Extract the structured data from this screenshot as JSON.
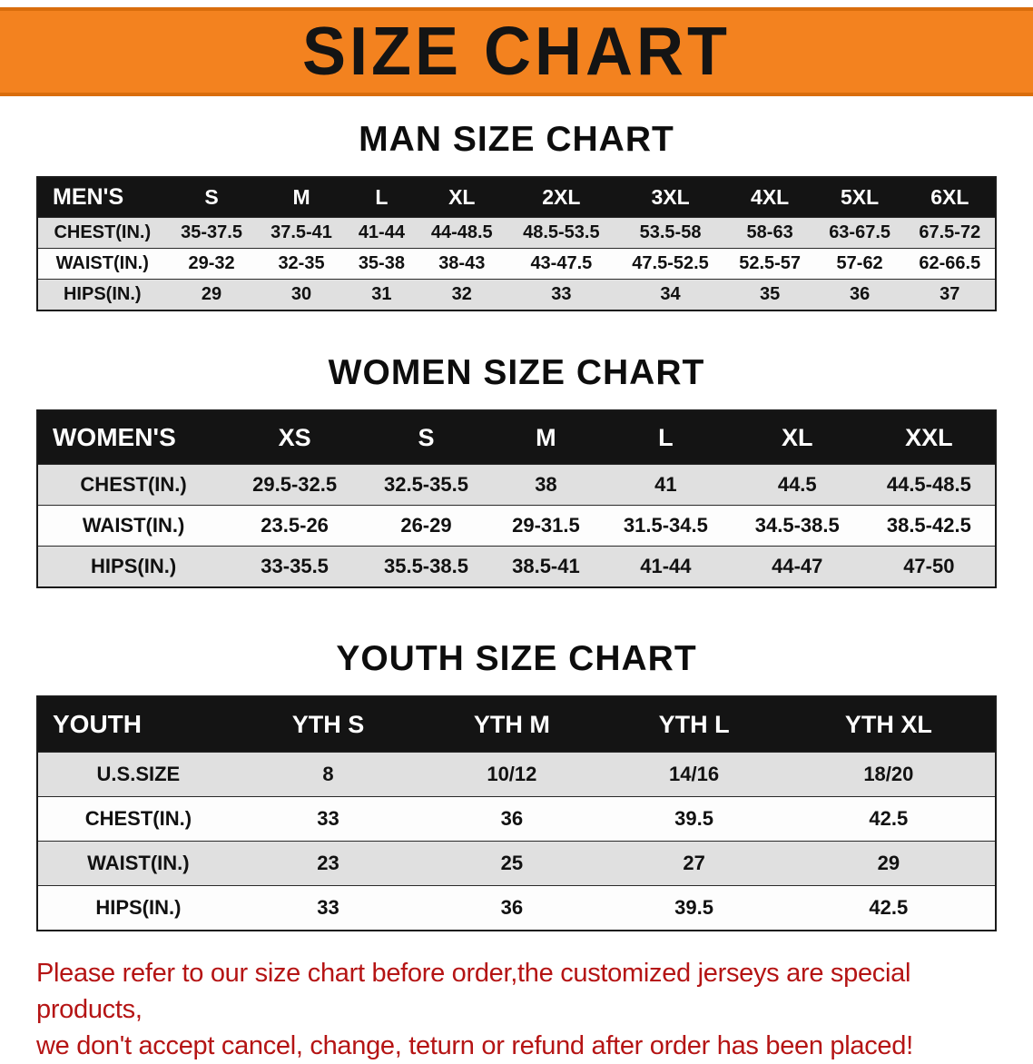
{
  "banner": {
    "title": "SIZE CHART",
    "bg_color": "#f3821f",
    "text_color": "#141414"
  },
  "sections": [
    {
      "heading": "MAN SIZE CHART",
      "table": {
        "header": [
          "MEN'S",
          "S",
          "M",
          "L",
          "XL",
          "2XL",
          "3XL",
          "4XL",
          "5XL",
          "6XL"
        ],
        "rows": [
          [
            "CHEST(IN.)",
            "35-37.5",
            "37.5-41",
            "41-44",
            "44-48.5",
            "48.5-53.5",
            "53.5-58",
            "58-63",
            "63-67.5",
            "67.5-72"
          ],
          [
            "WAIST(IN.)",
            "29-32",
            "32-35",
            "35-38",
            "38-43",
            "43-47.5",
            "47.5-52.5",
            "52.5-57",
            "57-62",
            "62-66.5"
          ],
          [
            "HIPS(IN.)",
            "29",
            "30",
            "31",
            "32",
            "33",
            "34",
            "35",
            "36",
            "37"
          ]
        ]
      }
    },
    {
      "heading": "WOMEN SIZE CHART",
      "table": {
        "header": [
          "WOMEN'S",
          "XS",
          "S",
          "M",
          "L",
          "XL",
          "XXL"
        ],
        "rows": [
          [
            "CHEST(IN.)",
            "29.5-32.5",
            "32.5-35.5",
            "38",
            "41",
            "44.5",
            "44.5-48.5"
          ],
          [
            "WAIST(IN.)",
            "23.5-26",
            "26-29",
            "29-31.5",
            "31.5-34.5",
            "34.5-38.5",
            "38.5-42.5"
          ],
          [
            "HIPS(IN.)",
            "33-35.5",
            "35.5-38.5",
            "38.5-41",
            "41-44",
            "44-47",
            "47-50"
          ]
        ]
      }
    },
    {
      "heading": "YOUTH SIZE CHART",
      "table": {
        "header": [
          "YOUTH",
          "YTH S",
          "YTH M",
          "YTH L",
          "YTH XL"
        ],
        "rows": [
          [
            "U.S.SIZE",
            "8",
            "10/12",
            "14/16",
            "18/20"
          ],
          [
            "CHEST(IN.)",
            "33",
            "36",
            "39.5",
            "42.5"
          ],
          [
            "WAIST(IN.)",
            "23",
            "25",
            "27",
            "29"
          ],
          [
            "HIPS(IN.)",
            "33",
            "36",
            "39.5",
            "42.5"
          ]
        ]
      }
    }
  ],
  "footer": {
    "line1": "Please refer to our size chart before order,the customized jerseys are special products,",
    "line2": "we don't accept cancel, change, teturn or refund after order has been placed!",
    "text_color": "#b51414"
  }
}
